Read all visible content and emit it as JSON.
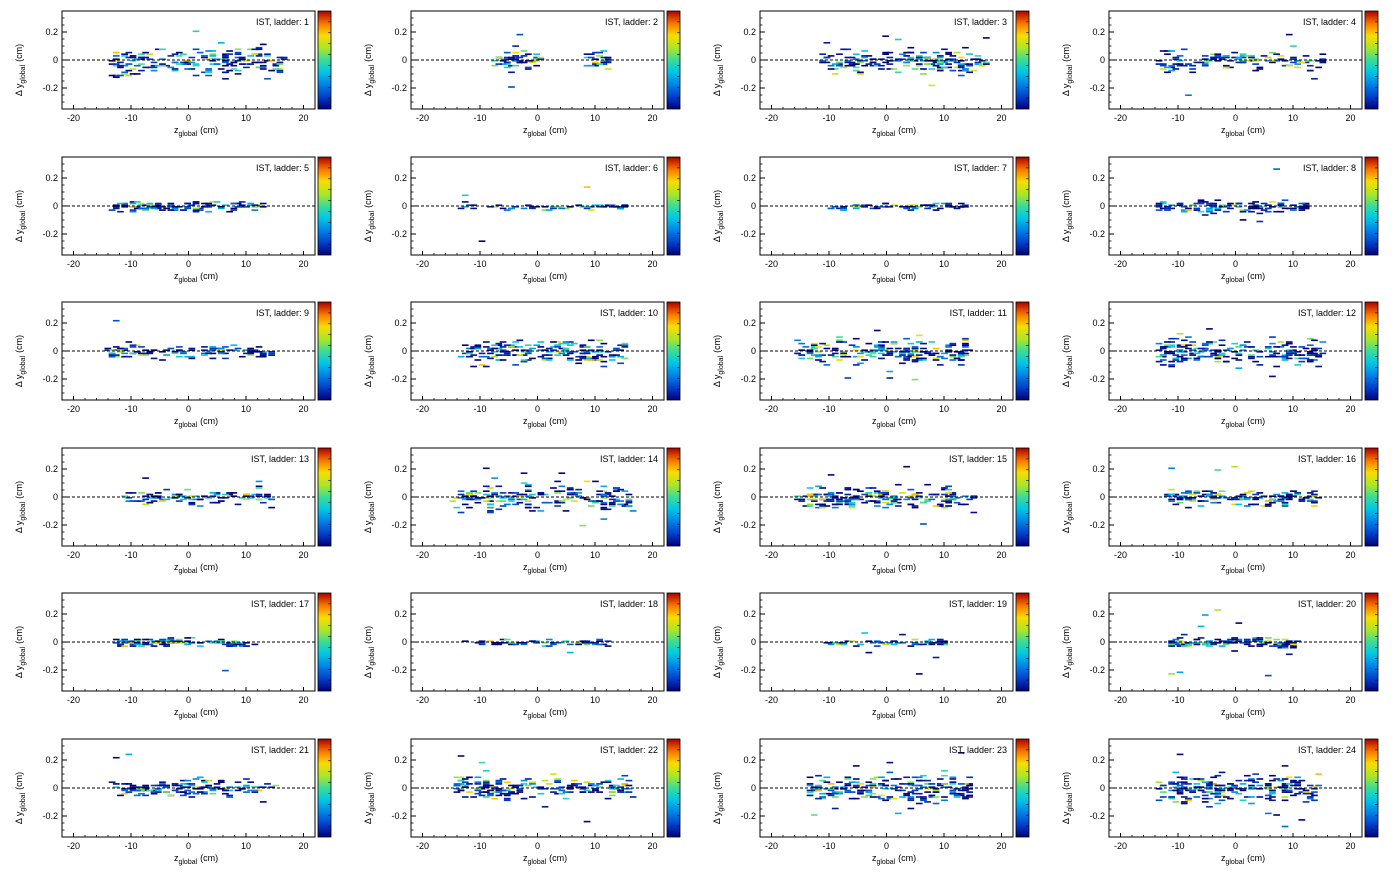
{
  "figure": {
    "panel_title_prefix": "IST, ladder: ",
    "x_label_main": "z",
    "x_label_sub": "global",
    "x_label_unit": "(cm)",
    "y_label_main": "Δ y",
    "y_label_sub": "global",
    "y_label_unit": "(cm)"
  },
  "chart_data": {
    "type": "heatmap",
    "layout": "6 rows x 4 columns grid of 2D histograms",
    "x_axis": {
      "range": [
        -22,
        22
      ],
      "ticks": [
        -20,
        -10,
        0,
        10,
        20
      ],
      "label": "z_global (cm)"
    },
    "y_axis": {
      "range": [
        -0.35,
        0.35
      ],
      "ticks": [
        -0.2,
        0,
        0.2
      ],
      "label": "Δ y_global (cm)"
    },
    "reference_line": {
      "y": 0,
      "style": "dashed"
    },
    "colormap": "rainbow (blue to red)",
    "panels": [
      {
        "ladder": 1,
        "z_min": -14,
        "z_max": 16,
        "spread": 0.1,
        "density": 0.75,
        "max_count": 10
      },
      {
        "ladder": 2,
        "z_min": -8,
        "z_max": 12,
        "spread": 0.06,
        "density": 0.55,
        "max_count": 12,
        "gap": [
          0,
          8
        ]
      },
      {
        "ladder": 3,
        "z_min": -12,
        "z_max": 17,
        "spread": 0.07,
        "density": 0.7,
        "max_count": 8
      },
      {
        "ladder": 4,
        "z_min": -14,
        "z_max": 15,
        "spread": 0.07,
        "density": 0.5,
        "max_count": 8
      },
      {
        "ladder": 5,
        "z_min": -14,
        "z_max": 13,
        "spread": 0.03,
        "density": 0.4,
        "max_count": 7
      },
      {
        "ladder": 6,
        "z_min": -14,
        "z_max": 15,
        "spread": 0.02,
        "density": 0.15,
        "max_count": 3
      },
      {
        "ladder": 7,
        "z_min": -11,
        "z_max": 13,
        "spread": 0.02,
        "density": 0.2,
        "max_count": 3
      },
      {
        "ladder": 8,
        "z_min": -14,
        "z_max": 12,
        "spread": 0.04,
        "density": 0.45,
        "max_count": 3
      },
      {
        "ladder": 9,
        "z_min": -15,
        "z_max": 14,
        "spread": 0.04,
        "density": 0.45,
        "max_count": 6
      },
      {
        "ladder": 10,
        "z_min": -14,
        "z_max": 15,
        "spread": 0.08,
        "density": 0.7,
        "max_count": 10
      },
      {
        "ladder": 11,
        "z_min": -16,
        "z_max": 14,
        "spread": 0.08,
        "density": 0.8,
        "max_count": 14
      },
      {
        "ladder": 12,
        "z_min": -14,
        "z_max": 15,
        "spread": 0.09,
        "density": 0.8,
        "max_count": 10
      },
      {
        "ladder": 13,
        "z_min": -12,
        "z_max": 14,
        "spread": 0.05,
        "density": 0.35,
        "max_count": 10
      },
      {
        "ladder": 14,
        "z_min": -15,
        "z_max": 16,
        "spread": 0.09,
        "density": 0.8,
        "max_count": 12
      },
      {
        "ladder": 15,
        "z_min": -16,
        "z_max": 15,
        "spread": 0.07,
        "density": 0.8,
        "max_count": 16
      },
      {
        "ladder": 16,
        "z_min": -13,
        "z_max": 14,
        "spread": 0.05,
        "density": 0.55,
        "max_count": 10
      },
      {
        "ladder": 17,
        "z_min": -14,
        "z_max": 11,
        "spread": 0.03,
        "density": 0.4,
        "max_count": 7
      },
      {
        "ladder": 18,
        "z_min": -13,
        "z_max": 12,
        "spread": 0.02,
        "density": 0.15,
        "max_count": 3
      },
      {
        "ladder": 19,
        "z_min": -12,
        "z_max": 10,
        "spread": 0.02,
        "density": 0.15,
        "max_count": 3
      },
      {
        "ladder": 20,
        "z_min": -12,
        "z_max": 10,
        "spread": 0.03,
        "density": 0.5,
        "max_count": 4
      },
      {
        "ladder": 21,
        "z_min": -14,
        "z_max": 15,
        "spread": 0.05,
        "density": 0.55,
        "max_count": 8
      },
      {
        "ladder": 22,
        "z_min": -15,
        "z_max": 16,
        "spread": 0.07,
        "density": 0.75,
        "max_count": 12
      },
      {
        "ladder": 23,
        "z_min": -14,
        "z_max": 14,
        "spread": 0.09,
        "density": 0.85,
        "max_count": 20
      },
      {
        "ladder": 24,
        "z_min": -14,
        "z_max": 14,
        "spread": 0.09,
        "density": 0.85,
        "max_count": 14
      }
    ]
  }
}
